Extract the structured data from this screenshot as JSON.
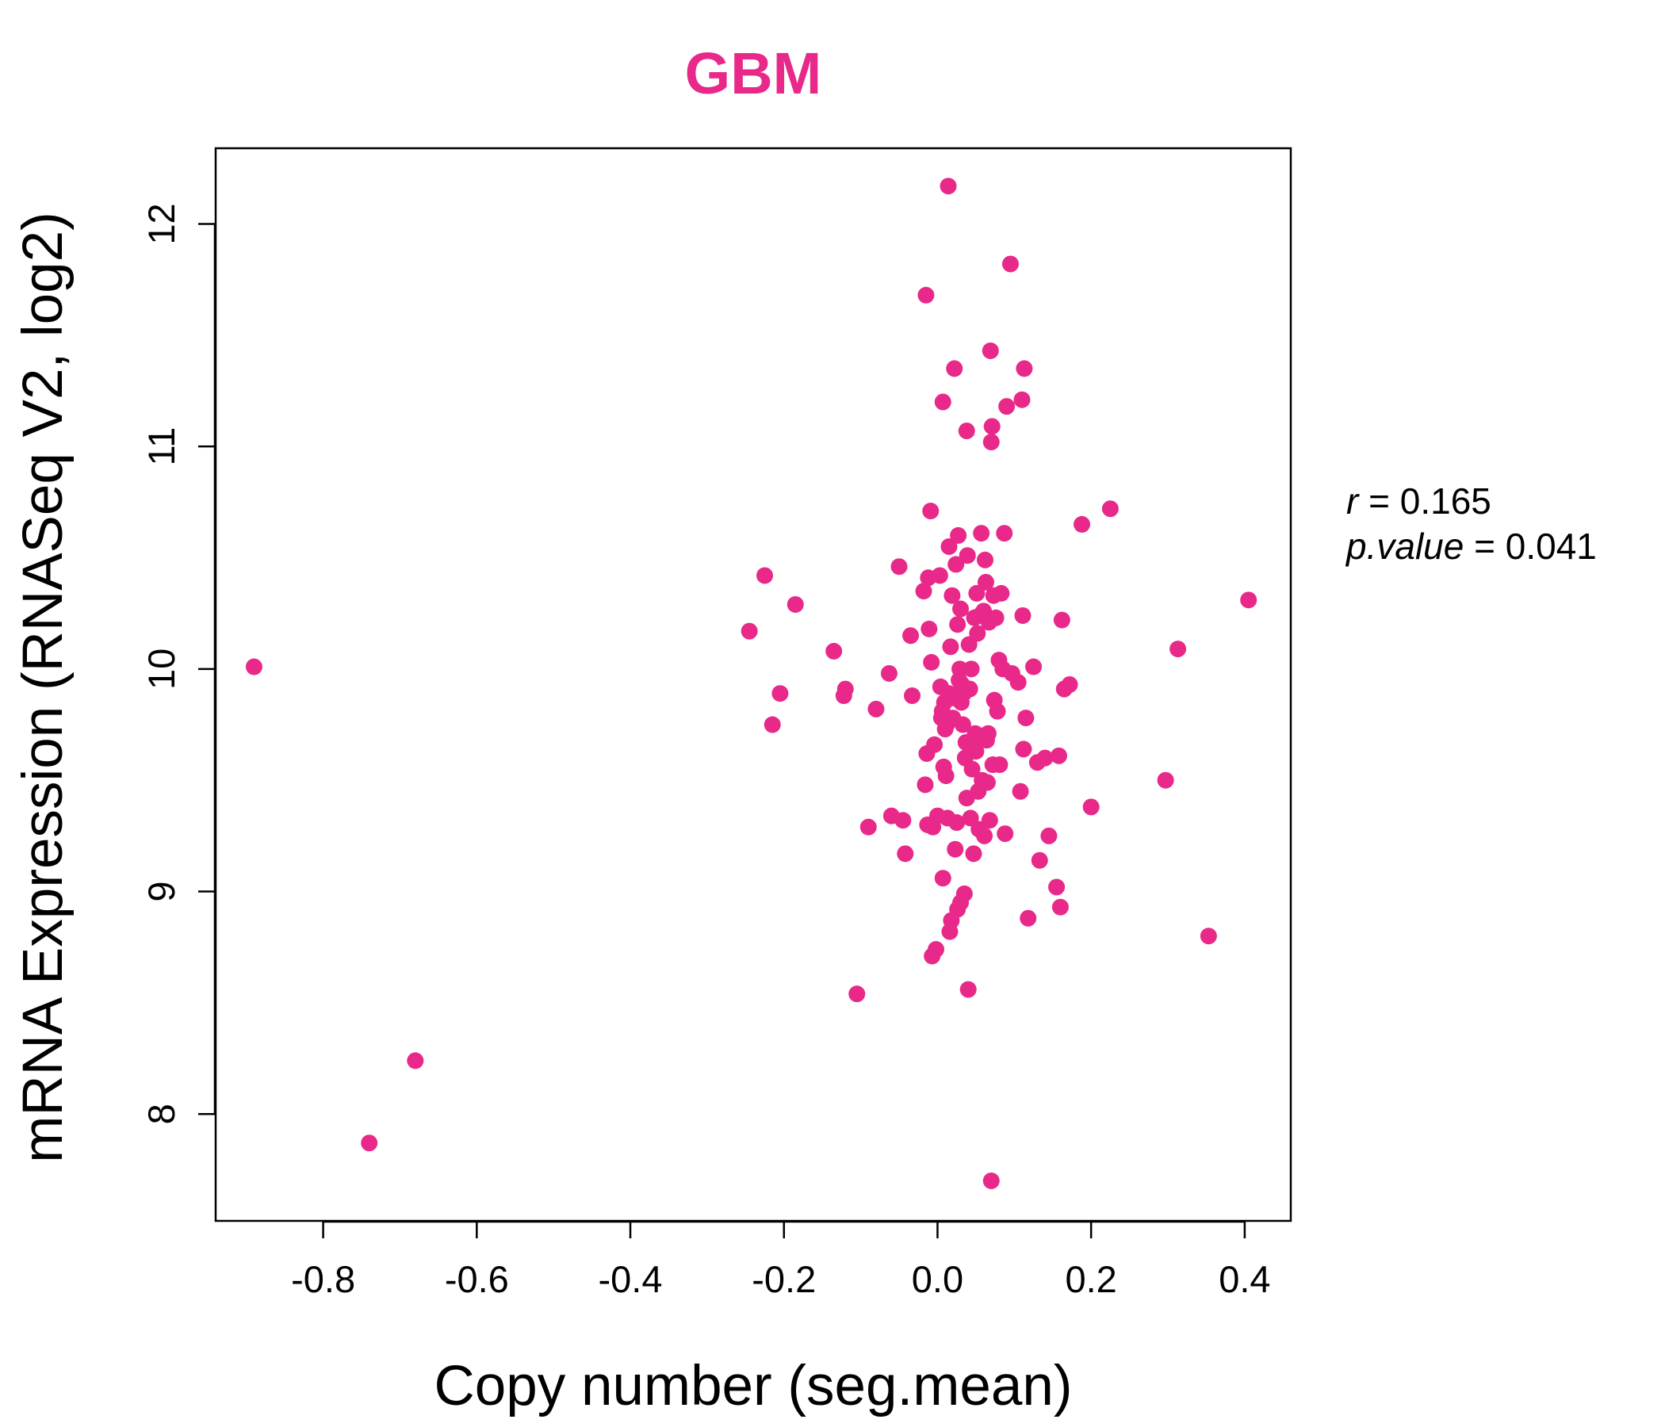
{
  "colors": {
    "accent": "#E8298A",
    "axis": "#000000",
    "background": "#ffffff"
  },
  "chart_data": {
    "type": "scatter",
    "title": "GBM",
    "xlabel": "Copy number (seg.mean)",
    "ylabel": "mRNA Expression (RNASeq V2, log2)",
    "xlim": [
      -0.94,
      0.46
    ],
    "ylim": [
      7.52,
      12.34
    ],
    "x_ticks": [
      -0.8,
      -0.6,
      -0.4,
      -0.2,
      0.0,
      0.2,
      0.4
    ],
    "x_tick_labels": [
      "-0.8",
      "-0.6",
      "-0.4",
      "-0.2",
      "0.0",
      "0.2",
      "0.4"
    ],
    "y_ticks": [
      8,
      9,
      10,
      11,
      12
    ],
    "y_tick_labels": [
      "8",
      "9",
      "10",
      "11",
      "12"
    ],
    "grid": false,
    "stats": {
      "r_label": "r",
      "r_value": "0.165",
      "p_label": "p.value",
      "p_value": "0.041"
    },
    "points": [
      [
        -0.89,
        10.01
      ],
      [
        -0.74,
        7.87
      ],
      [
        -0.68,
        8.24
      ],
      [
        -0.245,
        10.17
      ],
      [
        -0.225,
        10.42
      ],
      [
        -0.215,
        9.75
      ],
      [
        -0.205,
        9.89
      ],
      [
        -0.185,
        10.29
      ],
      [
        -0.135,
        10.08
      ],
      [
        -0.12,
        9.91
      ],
      [
        -0.122,
        9.88
      ],
      [
        -0.105,
        8.54
      ],
      [
        -0.09,
        9.29
      ],
      [
        -0.08,
        9.82
      ],
      [
        -0.063,
        9.98
      ],
      [
        -0.06,
        9.34
      ],
      [
        -0.05,
        10.46
      ],
      [
        -0.045,
        9.32
      ],
      [
        -0.042,
        9.17
      ],
      [
        -0.035,
        10.15
      ],
      [
        -0.033,
        9.88
      ],
      [
        -0.018,
        10.35
      ],
      [
        -0.016,
        9.48
      ],
      [
        -0.015,
        11.68
      ],
      [
        -0.012,
        10.41
      ],
      [
        -0.014,
        9.62
      ],
      [
        -0.013,
        9.3
      ],
      [
        -0.011,
        10.18
      ],
      [
        -0.009,
        10.71
      ],
      [
        -0.008,
        10.03
      ],
      [
        -0.007,
        8.71
      ],
      [
        -0.006,
        9.29
      ],
      [
        -0.004,
        9.66
      ],
      [
        -0.002,
        8.74
      ],
      [
        0.0,
        9.34
      ],
      [
        0.003,
        10.42
      ],
      [
        0.004,
        9.92
      ],
      [
        0.005,
        9.78
      ],
      [
        0.006,
        9.81
      ],
      [
        0.007,
        9.06
      ],
      [
        0.007,
        11.2
      ],
      [
        0.008,
        9.56
      ],
      [
        0.009,
        9.85
      ],
      [
        0.01,
        9.73
      ],
      [
        0.011,
        9.52
      ],
      [
        0.012,
        9.75
      ],
      [
        0.013,
        9.33
      ],
      [
        0.014,
        12.17
      ],
      [
        0.015,
        10.55
      ],
      [
        0.015,
        9.89
      ],
      [
        0.016,
        8.82
      ],
      [
        0.017,
        10.1
      ],
      [
        0.018,
        8.87
      ],
      [
        0.019,
        10.33
      ],
      [
        0.02,
        9.78
      ],
      [
        0.021,
        9.87
      ],
      [
        0.022,
        11.35
      ],
      [
        0.023,
        9.19
      ],
      [
        0.024,
        10.47
      ],
      [
        0.025,
        9.31
      ],
      [
        0.026,
        10.2
      ],
      [
        0.026,
        8.92
      ],
      [
        0.027,
        10.6
      ],
      [
        0.028,
        9.95
      ],
      [
        0.029,
        10.0
      ],
      [
        0.03,
        8.95
      ],
      [
        0.03,
        10.27
      ],
      [
        0.031,
        9.85
      ],
      [
        0.032,
        9.93
      ],
      [
        0.033,
        9.75
      ],
      [
        0.034,
        9.89
      ],
      [
        0.035,
        8.99
      ],
      [
        0.036,
        9.6
      ],
      [
        0.037,
        9.67
      ],
      [
        0.038,
        11.07
      ],
      [
        0.038,
        9.42
      ],
      [
        0.039,
        10.51
      ],
      [
        0.04,
        8.56
      ],
      [
        0.041,
        10.11
      ],
      [
        0.042,
        9.91
      ],
      [
        0.043,
        9.33
      ],
      [
        0.044,
        10.0
      ],
      [
        0.045,
        9.55
      ],
      [
        0.046,
        9.68
      ],
      [
        0.047,
        9.17
      ],
      [
        0.048,
        10.23
      ],
      [
        0.049,
        9.71
      ],
      [
        0.05,
        9.63
      ],
      [
        0.051,
        10.34
      ],
      [
        0.052,
        10.16
      ],
      [
        0.053,
        9.45
      ],
      [
        0.054,
        9.28
      ],
      [
        0.055,
        10.24
      ],
      [
        0.056,
        9.7
      ],
      [
        0.057,
        10.61
      ],
      [
        0.058,
        9.5
      ],
      [
        0.06,
        10.26
      ],
      [
        0.061,
        9.25
      ],
      [
        0.062,
        10.49
      ],
      [
        0.063,
        10.39
      ],
      [
        0.064,
        9.68
      ],
      [
        0.065,
        9.49
      ],
      [
        0.066,
        9.71
      ],
      [
        0.067,
        10.21
      ],
      [
        0.068,
        9.32
      ],
      [
        0.069,
        11.43
      ],
      [
        0.07,
        11.02
      ],
      [
        0.07,
        7.7
      ],
      [
        0.071,
        11.09
      ],
      [
        0.072,
        9.57
      ],
      [
        0.073,
        10.33
      ],
      [
        0.074,
        9.86
      ],
      [
        0.076,
        10.23
      ],
      [
        0.078,
        9.81
      ],
      [
        0.08,
        10.04
      ],
      [
        0.081,
        9.57
      ],
      [
        0.083,
        10.34
      ],
      [
        0.085,
        10.0
      ],
      [
        0.087,
        10.61
      ],
      [
        0.088,
        9.26
      ],
      [
        0.09,
        11.18
      ],
      [
        0.095,
        11.82
      ],
      [
        0.097,
        9.98
      ],
      [
        0.105,
        9.94
      ],
      [
        0.108,
        9.45
      ],
      [
        0.11,
        11.21
      ],
      [
        0.111,
        10.24
      ],
      [
        0.112,
        9.64
      ],
      [
        0.113,
        11.35
      ],
      [
        0.115,
        9.78
      ],
      [
        0.118,
        8.88
      ],
      [
        0.125,
        10.01
      ],
      [
        0.13,
        9.58
      ],
      [
        0.133,
        9.14
      ],
      [
        0.14,
        9.6
      ],
      [
        0.145,
        9.25
      ],
      [
        0.155,
        9.02
      ],
      [
        0.158,
        9.61
      ],
      [
        0.16,
        8.93
      ],
      [
        0.162,
        10.22
      ],
      [
        0.165,
        9.91
      ],
      [
        0.172,
        9.93
      ],
      [
        0.188,
        10.65
      ],
      [
        0.2,
        9.38
      ],
      [
        0.225,
        10.72
      ],
      [
        0.297,
        9.5
      ],
      [
        0.313,
        10.09
      ],
      [
        0.353,
        8.8
      ],
      [
        0.405,
        10.31
      ]
    ]
  }
}
